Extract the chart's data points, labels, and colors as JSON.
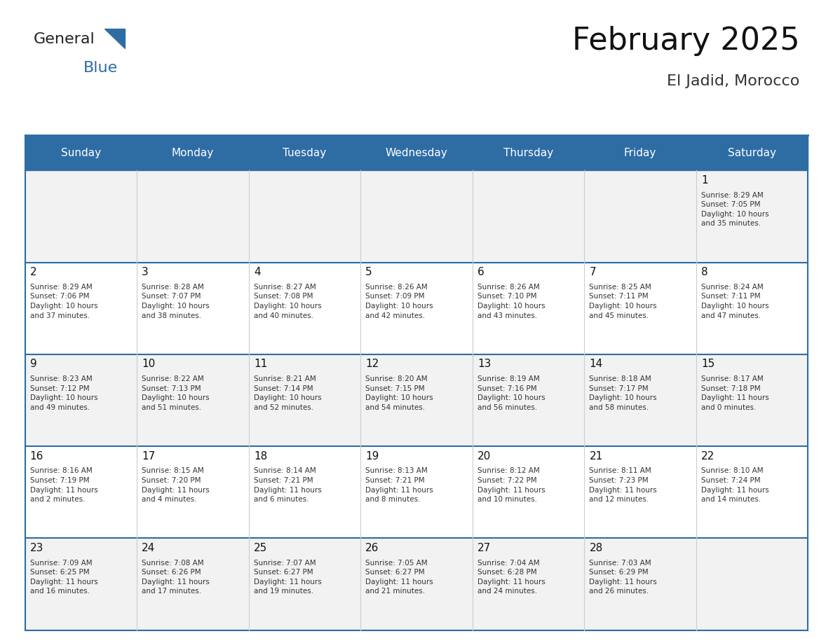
{
  "title": "February 2025",
  "subtitle": "El Jadid, Morocco",
  "header_bg": "#2E6DA4",
  "header_text_color": "#FFFFFF",
  "cell_bg_odd": "#F2F2F2",
  "cell_bg_even": "#FFFFFF",
  "border_color": "#2E6DA4",
  "days_of_week": [
    "Sunday",
    "Monday",
    "Tuesday",
    "Wednesday",
    "Thursday",
    "Friday",
    "Saturday"
  ],
  "calendar": [
    [
      {
        "day": "",
        "info": ""
      },
      {
        "day": "",
        "info": ""
      },
      {
        "day": "",
        "info": ""
      },
      {
        "day": "",
        "info": ""
      },
      {
        "day": "",
        "info": ""
      },
      {
        "day": "",
        "info": ""
      },
      {
        "day": "1",
        "info": "Sunrise: 8:29 AM\nSunset: 7:05 PM\nDaylight: 10 hours\nand 35 minutes."
      }
    ],
    [
      {
        "day": "2",
        "info": "Sunrise: 8:29 AM\nSunset: 7:06 PM\nDaylight: 10 hours\nand 37 minutes."
      },
      {
        "day": "3",
        "info": "Sunrise: 8:28 AM\nSunset: 7:07 PM\nDaylight: 10 hours\nand 38 minutes."
      },
      {
        "day": "4",
        "info": "Sunrise: 8:27 AM\nSunset: 7:08 PM\nDaylight: 10 hours\nand 40 minutes."
      },
      {
        "day": "5",
        "info": "Sunrise: 8:26 AM\nSunset: 7:09 PM\nDaylight: 10 hours\nand 42 minutes."
      },
      {
        "day": "6",
        "info": "Sunrise: 8:26 AM\nSunset: 7:10 PM\nDaylight: 10 hours\nand 43 minutes."
      },
      {
        "day": "7",
        "info": "Sunrise: 8:25 AM\nSunset: 7:11 PM\nDaylight: 10 hours\nand 45 minutes."
      },
      {
        "day": "8",
        "info": "Sunrise: 8:24 AM\nSunset: 7:11 PM\nDaylight: 10 hours\nand 47 minutes."
      }
    ],
    [
      {
        "day": "9",
        "info": "Sunrise: 8:23 AM\nSunset: 7:12 PM\nDaylight: 10 hours\nand 49 minutes."
      },
      {
        "day": "10",
        "info": "Sunrise: 8:22 AM\nSunset: 7:13 PM\nDaylight: 10 hours\nand 51 minutes."
      },
      {
        "day": "11",
        "info": "Sunrise: 8:21 AM\nSunset: 7:14 PM\nDaylight: 10 hours\nand 52 minutes."
      },
      {
        "day": "12",
        "info": "Sunrise: 8:20 AM\nSunset: 7:15 PM\nDaylight: 10 hours\nand 54 minutes."
      },
      {
        "day": "13",
        "info": "Sunrise: 8:19 AM\nSunset: 7:16 PM\nDaylight: 10 hours\nand 56 minutes."
      },
      {
        "day": "14",
        "info": "Sunrise: 8:18 AM\nSunset: 7:17 PM\nDaylight: 10 hours\nand 58 minutes."
      },
      {
        "day": "15",
        "info": "Sunrise: 8:17 AM\nSunset: 7:18 PM\nDaylight: 11 hours\nand 0 minutes."
      }
    ],
    [
      {
        "day": "16",
        "info": "Sunrise: 8:16 AM\nSunset: 7:19 PM\nDaylight: 11 hours\nand 2 minutes."
      },
      {
        "day": "17",
        "info": "Sunrise: 8:15 AM\nSunset: 7:20 PM\nDaylight: 11 hours\nand 4 minutes."
      },
      {
        "day": "18",
        "info": "Sunrise: 8:14 AM\nSunset: 7:21 PM\nDaylight: 11 hours\nand 6 minutes."
      },
      {
        "day": "19",
        "info": "Sunrise: 8:13 AM\nSunset: 7:21 PM\nDaylight: 11 hours\nand 8 minutes."
      },
      {
        "day": "20",
        "info": "Sunrise: 8:12 AM\nSunset: 7:22 PM\nDaylight: 11 hours\nand 10 minutes."
      },
      {
        "day": "21",
        "info": "Sunrise: 8:11 AM\nSunset: 7:23 PM\nDaylight: 11 hours\nand 12 minutes."
      },
      {
        "day": "22",
        "info": "Sunrise: 8:10 AM\nSunset: 7:24 PM\nDaylight: 11 hours\nand 14 minutes."
      }
    ],
    [
      {
        "day": "23",
        "info": "Sunrise: 7:09 AM\nSunset: 6:25 PM\nDaylight: 11 hours\nand 16 minutes."
      },
      {
        "day": "24",
        "info": "Sunrise: 7:08 AM\nSunset: 6:26 PM\nDaylight: 11 hours\nand 17 minutes."
      },
      {
        "day": "25",
        "info": "Sunrise: 7:07 AM\nSunset: 6:27 PM\nDaylight: 11 hours\nand 19 minutes."
      },
      {
        "day": "26",
        "info": "Sunrise: 7:05 AM\nSunset: 6:27 PM\nDaylight: 11 hours\nand 21 minutes."
      },
      {
        "day": "27",
        "info": "Sunrise: 7:04 AM\nSunset: 6:28 PM\nDaylight: 11 hours\nand 24 minutes."
      },
      {
        "day": "28",
        "info": "Sunrise: 7:03 AM\nSunset: 6:29 PM\nDaylight: 11 hours\nand 26 minutes."
      },
      {
        "day": "",
        "info": ""
      }
    ]
  ],
  "logo_general_color": "#222222",
  "logo_blue_color": "#2E6DA4"
}
